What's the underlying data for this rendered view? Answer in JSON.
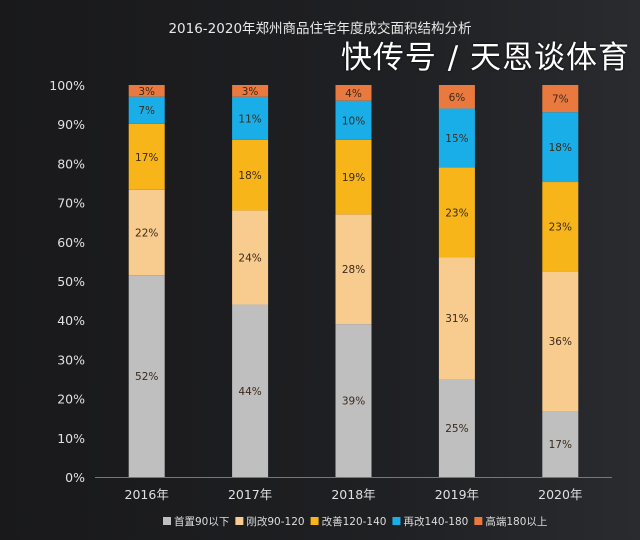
{
  "chart_data": {
    "type": "bar",
    "stacked": true,
    "title": "2016-2020年郑州商品住宅年度成交面积结构分析",
    "categories": [
      "2016年",
      "2017年",
      "2018年",
      "2019年",
      "2020年"
    ],
    "ylim": [
      0,
      100
    ],
    "yticks": [
      "0%",
      "10%",
      "20%",
      "30%",
      "40%",
      "50%",
      "60%",
      "70%",
      "80%",
      "90%",
      "100%"
    ],
    "grid": false,
    "legend_position": "bottom",
    "series": [
      {
        "name": "首置90以下",
        "color": "#bfbfbf",
        "values": [
          52,
          44,
          39,
          25,
          17
        ]
      },
      {
        "name": "刚改90-120",
        "color": "#f8cb8f",
        "values": [
          22,
          24,
          28,
          31,
          36
        ]
      },
      {
        "name": "改善120-140",
        "color": "#f7b519",
        "values": [
          17,
          18,
          19,
          23,
          23
        ]
      },
      {
        "name": "再改140-180",
        "color": "#1aaee8",
        "values": [
          7,
          11,
          10,
          15,
          18
        ]
      },
      {
        "name": "高端180以上",
        "color": "#e9793f",
        "values": [
          3,
          3,
          4,
          6,
          7
        ]
      }
    ]
  },
  "overlay_text": "快传号 / 天恩谈体育"
}
